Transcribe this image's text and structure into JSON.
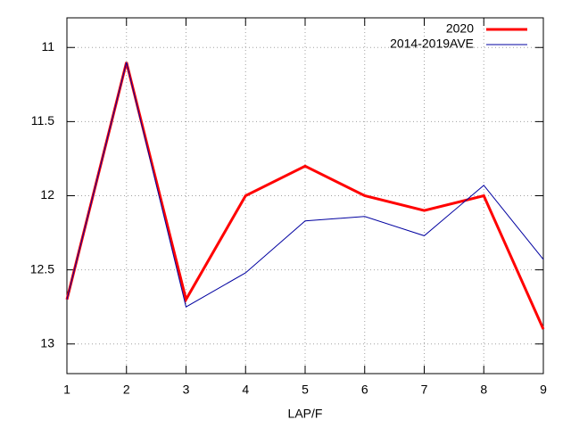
{
  "chart_data": {
    "type": "line",
    "x_label": "LAP/F",
    "x": [
      1,
      2,
      3,
      4,
      5,
      6,
      7,
      8,
      9
    ],
    "series": [
      {
        "name": "2020",
        "color": "#ff0000",
        "values": [
          12.7,
          11.1,
          12.7,
          12.0,
          11.8,
          12.0,
          12.1,
          12.0,
          12.9
        ]
      },
      {
        "name": "2014-2019AVE",
        "color": "#0000a0",
        "values": [
          12.7,
          11.1,
          12.75,
          12.52,
          12.17,
          12.14,
          12.27,
          11.93,
          12.43
        ]
      }
    ],
    "xlim": [
      1,
      9
    ],
    "xticks": [
      1,
      2,
      3,
      4,
      5,
      6,
      7,
      8,
      9
    ],
    "ylim": [
      13.2,
      10.8
    ],
    "yticks": [
      11,
      11.5,
      12,
      12.5,
      13
    ],
    "grid": true,
    "legend": "top-right"
  }
}
